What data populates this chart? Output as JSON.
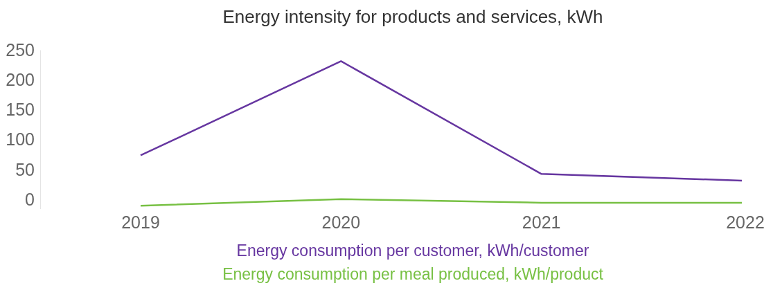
{
  "chart_data": {
    "type": "line",
    "title": "Energy intensity for products and services, kWh",
    "categories": [
      "2019",
      "2020",
      "2021",
      "2022"
    ],
    "series": [
      {
        "name": "Energy consumption per customer, kWh/customer",
        "color": "#6636a0",
        "values": [
          74,
          231,
          43,
          32
        ]
      },
      {
        "name": "Energy consumption per meal produced, kWh/product",
        "color": "#77c043",
        "values": [
          -10,
          1,
          -5,
          -5
        ]
      }
    ],
    "yticks": [
      0,
      50,
      100,
      150,
      200,
      250
    ],
    "ylim": [
      -15,
      250
    ],
    "grid": false,
    "legend": "bottom",
    "marker": "none",
    "line_style": "solid"
  }
}
